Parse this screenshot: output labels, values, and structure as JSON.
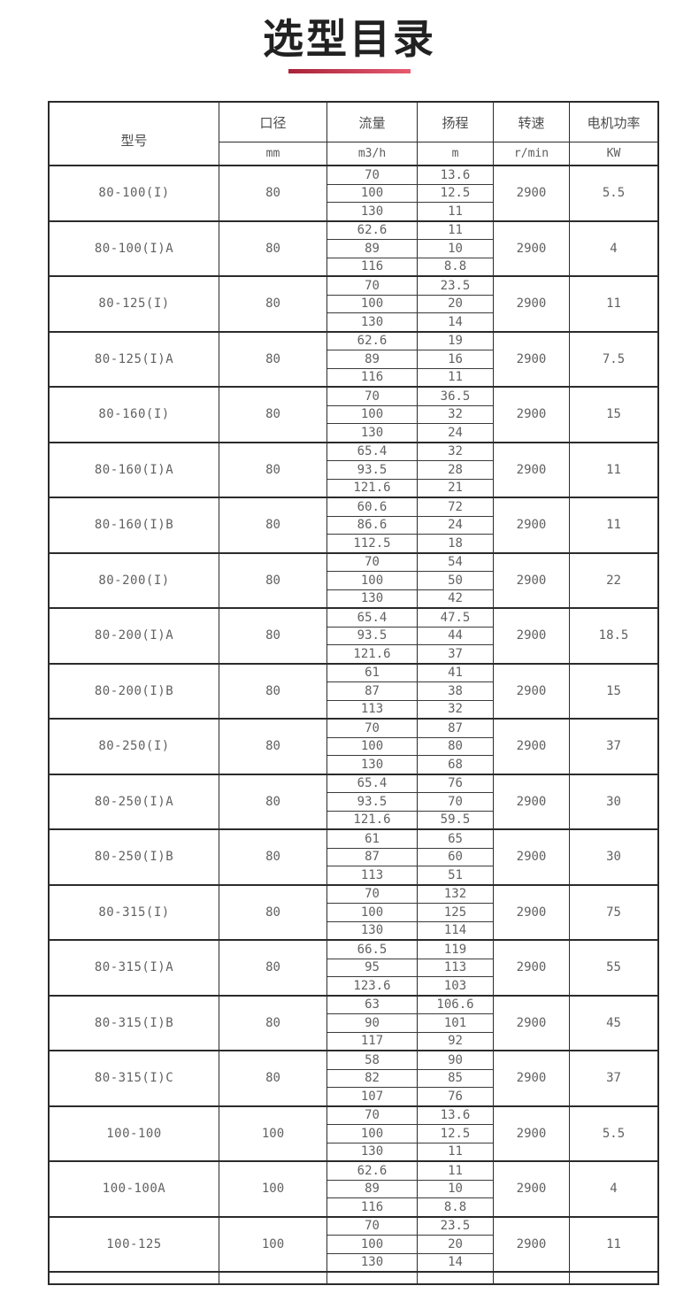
{
  "title": "选型目录",
  "accent_color": "#d2354e",
  "table": {
    "headers": {
      "model": "型号",
      "diameter": "口径",
      "flow": "流量",
      "head": "扬程",
      "speed": "转速",
      "power": "电机功率"
    },
    "units": {
      "diameter": "mm",
      "flow": "m3/h",
      "head": "m",
      "speed": "r/min",
      "power": "KW"
    },
    "rows": [
      {
        "model": "80-100(I)",
        "diameter": "80",
        "points": [
          [
            "70",
            "13.6"
          ],
          [
            "100",
            "12.5"
          ],
          [
            "130",
            "11"
          ]
        ],
        "speed": "2900",
        "power": "5.5"
      },
      {
        "model": "80-100(I)A",
        "diameter": "80",
        "points": [
          [
            "62.6",
            "11"
          ],
          [
            "89",
            "10"
          ],
          [
            "116",
            "8.8"
          ]
        ],
        "speed": "2900",
        "power": "4"
      },
      {
        "model": "80-125(I)",
        "diameter": "80",
        "points": [
          [
            "70",
            "23.5"
          ],
          [
            "100",
            "20"
          ],
          [
            "130",
            "14"
          ]
        ],
        "speed": "2900",
        "power": "11"
      },
      {
        "model": "80-125(I)A",
        "diameter": "80",
        "points": [
          [
            "62.6",
            "19"
          ],
          [
            "89",
            "16"
          ],
          [
            "116",
            "11"
          ]
        ],
        "speed": "2900",
        "power": "7.5"
      },
      {
        "model": "80-160(I)",
        "diameter": "80",
        "points": [
          [
            "70",
            "36.5"
          ],
          [
            "100",
            "32"
          ],
          [
            "130",
            "24"
          ]
        ],
        "speed": "2900",
        "power": "15"
      },
      {
        "model": "80-160(I)A",
        "diameter": "80",
        "points": [
          [
            "65.4",
            "32"
          ],
          [
            "93.5",
            "28"
          ],
          [
            "121.6",
            "21"
          ]
        ],
        "speed": "2900",
        "power": "11"
      },
      {
        "model": "80-160(I)B",
        "diameter": "80",
        "points": [
          [
            "60.6",
            "72"
          ],
          [
            "86.6",
            "24"
          ],
          [
            "112.5",
            "18"
          ]
        ],
        "speed": "2900",
        "power": "11"
      },
      {
        "model": "80-200(I)",
        "diameter": "80",
        "points": [
          [
            "70",
            "54"
          ],
          [
            "100",
            "50"
          ],
          [
            "130",
            "42"
          ]
        ],
        "speed": "2900",
        "power": "22"
      },
      {
        "model": "80-200(I)A",
        "diameter": "80",
        "points": [
          [
            "65.4",
            "47.5"
          ],
          [
            "93.5",
            "44"
          ],
          [
            "121.6",
            "37"
          ]
        ],
        "speed": "2900",
        "power": "18.5"
      },
      {
        "model": "80-200(I)B",
        "diameter": "80",
        "points": [
          [
            "61",
            "41"
          ],
          [
            "87",
            "38"
          ],
          [
            "113",
            "32"
          ]
        ],
        "speed": "2900",
        "power": "15"
      },
      {
        "model": "80-250(I)",
        "diameter": "80",
        "points": [
          [
            "70",
            "87"
          ],
          [
            "100",
            "80"
          ],
          [
            "130",
            "68"
          ]
        ],
        "speed": "2900",
        "power": "37"
      },
      {
        "model": "80-250(I)A",
        "diameter": "80",
        "points": [
          [
            "65.4",
            "76"
          ],
          [
            "93.5",
            "70"
          ],
          [
            "121.6",
            "59.5"
          ]
        ],
        "speed": "2900",
        "power": "30"
      },
      {
        "model": "80-250(I)B",
        "diameter": "80",
        "points": [
          [
            "61",
            "65"
          ],
          [
            "87",
            "60"
          ],
          [
            "113",
            "51"
          ]
        ],
        "speed": "2900",
        "power": "30"
      },
      {
        "model": "80-315(I)",
        "diameter": "80",
        "points": [
          [
            "70",
            "132"
          ],
          [
            "100",
            "125"
          ],
          [
            "130",
            "114"
          ]
        ],
        "speed": "2900",
        "power": "75"
      },
      {
        "model": "80-315(I)A",
        "diameter": "80",
        "points": [
          [
            "66.5",
            "119"
          ],
          [
            "95",
            "113"
          ],
          [
            "123.6",
            "103"
          ]
        ],
        "speed": "2900",
        "power": "55"
      },
      {
        "model": "80-315(I)B",
        "diameter": "80",
        "points": [
          [
            "63",
            "106.6"
          ],
          [
            "90",
            "101"
          ],
          [
            "117",
            "92"
          ]
        ],
        "speed": "2900",
        "power": "45"
      },
      {
        "model": "80-315(I)C",
        "diameter": "80",
        "points": [
          [
            "58",
            "90"
          ],
          [
            "82",
            "85"
          ],
          [
            "107",
            "76"
          ]
        ],
        "speed": "2900",
        "power": "37"
      },
      {
        "model": "100-100",
        "diameter": "100",
        "points": [
          [
            "70",
            "13.6"
          ],
          [
            "100",
            "12.5"
          ],
          [
            "130",
            "11"
          ]
        ],
        "speed": "2900",
        "power": "5.5"
      },
      {
        "model": "100-100A",
        "diameter": "100",
        "points": [
          [
            "62.6",
            "11"
          ],
          [
            "89",
            "10"
          ],
          [
            "116",
            "8.8"
          ]
        ],
        "speed": "2900",
        "power": "4"
      },
      {
        "model": "100-125",
        "diameter": "100",
        "points": [
          [
            "70",
            "23.5"
          ],
          [
            "100",
            "20"
          ],
          [
            "130",
            "14"
          ]
        ],
        "speed": "2900",
        "power": "11"
      }
    ]
  }
}
